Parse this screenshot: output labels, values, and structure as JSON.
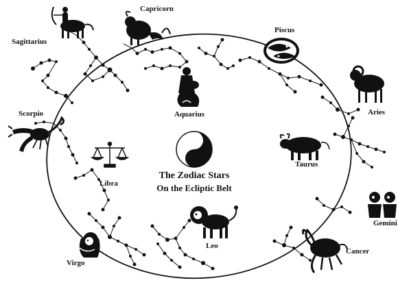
{
  "title": {
    "line1": "The  Zodiac Stars",
    "line2": "On the Ecliptic Belt"
  },
  "signs": [
    {
      "key": "capricorn",
      "label": "Capricorn"
    },
    {
      "key": "sagittarius",
      "label": "Sagittarius"
    },
    {
      "key": "piscus",
      "label": "Piscus"
    },
    {
      "key": "aquarius",
      "label": "Aquarius"
    },
    {
      "key": "aries",
      "label": "Aries"
    },
    {
      "key": "scorpio",
      "label": "Scorpio"
    },
    {
      "key": "taurus",
      "label": "Taurus"
    },
    {
      "key": "libra",
      "label": "Libra"
    },
    {
      "key": "gemini",
      "label": "Gemini"
    },
    {
      "key": "cancer",
      "label": "Cancer"
    },
    {
      "key": "leo",
      "label": "Leo"
    },
    {
      "key": "virgo",
      "label": "Virgo"
    }
  ],
  "colors": {
    "ink": "#111111",
    "paper": "#ffffff"
  },
  "icons": [
    "yin-yang-icon",
    "archer-icon",
    "sea-goat-icon",
    "fish-pair-icon",
    "water-bearer-icon",
    "ram-icon",
    "scorpion-icon",
    "bull-icon",
    "scales-icon",
    "twins-icon",
    "crab-icon",
    "lion-icon",
    "maiden-icon"
  ]
}
